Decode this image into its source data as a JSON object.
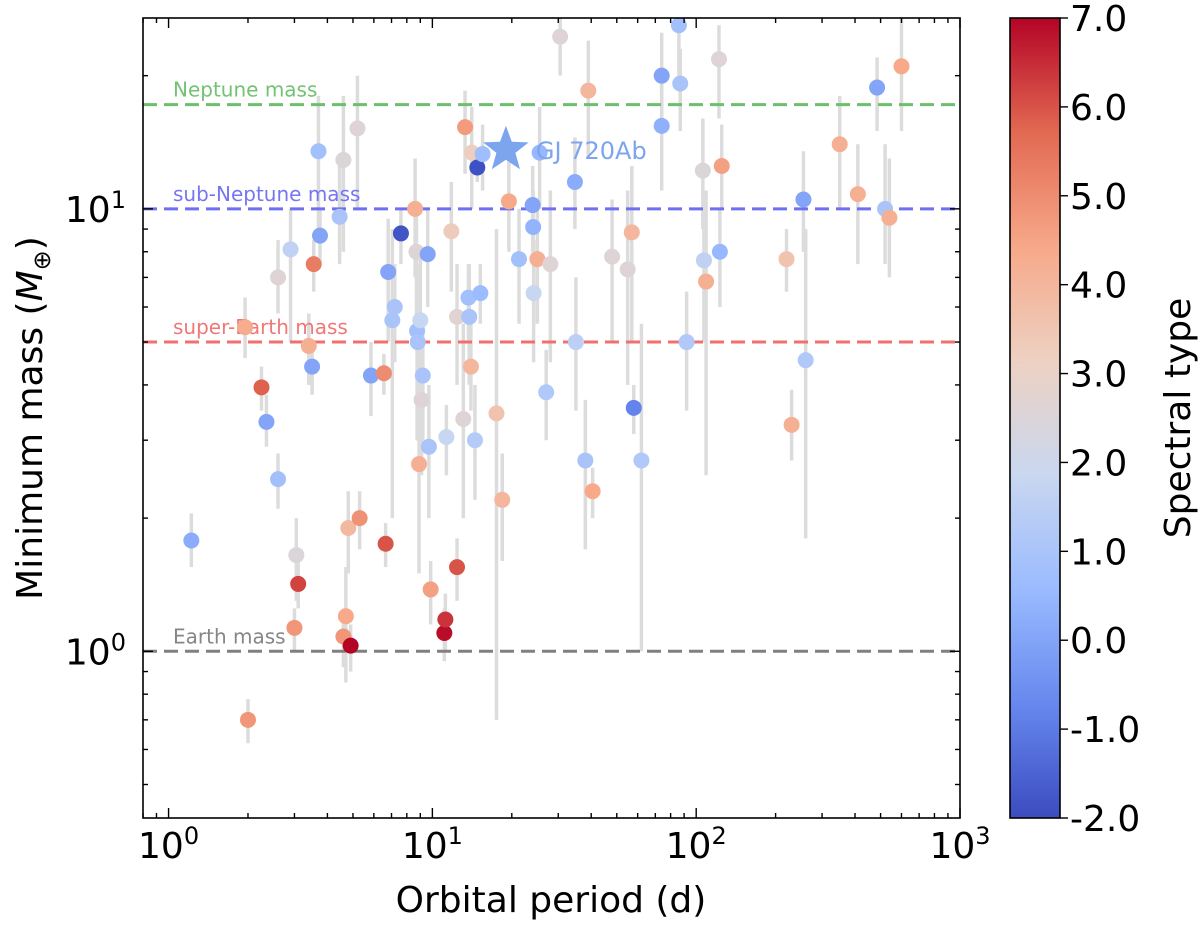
{
  "chart_data": {
    "type": "scatter",
    "title": "",
    "xlabel": "Orbital period (d)",
    "ylabel": "Minimum mass (",
    "ylabel_symbol": "M",
    "ylabel_subscript": "⊕",
    "ylabel_close": ")",
    "xscale": "log",
    "yscale": "log",
    "xlim": [
      0.8,
      1000
    ],
    "ylim": [
      0.42,
      27
    ],
    "xticks": [
      {
        "value": 1,
        "base": "10",
        "exp": "0"
      },
      {
        "value": 10,
        "base": "10",
        "exp": "1"
      },
      {
        "value": 100,
        "base": "10",
        "exp": "2"
      },
      {
        "value": 1000,
        "base": "10",
        "exp": "3"
      }
    ],
    "yticks": [
      {
        "value": 1,
        "base": "10",
        "exp": "0"
      },
      {
        "value": 10,
        "base": "10",
        "exp": "1"
      }
    ],
    "reference_lines": [
      {
        "name": "neptune",
        "label": "Neptune mass",
        "y": 17.2,
        "color": "#6cbf6c"
      },
      {
        "name": "sub-neptune",
        "label": "sub-Neptune mass",
        "y": 10,
        "color": "#6f6ff2"
      },
      {
        "name": "super-earth",
        "label": "super-Earth mass",
        "y": 5,
        "color": "#f07070"
      },
      {
        "name": "earth",
        "label": "Earth mass",
        "y": 1,
        "color": "#808080"
      }
    ],
    "highlight": {
      "label": "GJ 720Ab",
      "x": 19.0,
      "y": 13.6,
      "color": "#7da5ee"
    },
    "colorbar": {
      "label": "Spectral type",
      "min": -2.0,
      "max": 7.0,
      "ticks": [
        "-2.0",
        "-1.0",
        "0.0",
        "1.0",
        "2.0",
        "3.0",
        "4.0",
        "5.0",
        "6.0",
        "7.0"
      ],
      "colormap": [
        "#3b4cc0",
        "#6788ee",
        "#9abbff",
        "#c9d7f0",
        "#edd1c2",
        "#f7a889",
        "#e26952",
        "#b40426"
      ]
    },
    "points": [
      {
        "x": 1.22,
        "y": 1.78,
        "c": 0.2,
        "err": [
          1.55,
          2.05
        ]
      },
      {
        "x": 1.95,
        "y": 5.4,
        "c": 4.3,
        "err": [
          4.6,
          6.3
        ]
      },
      {
        "x": 2.0,
        "y": 0.7,
        "c": 4.8,
        "err": [
          0.62,
          0.78
        ]
      },
      {
        "x": 2.25,
        "y": 3.95,
        "c": 5.8,
        "err": [
          3.5,
          4.4
        ]
      },
      {
        "x": 2.35,
        "y": 3.3,
        "c": 0.0,
        "err": [
          2.9,
          3.8
        ]
      },
      {
        "x": 2.6,
        "y": 2.45,
        "c": 0.8,
        "err": [
          2.1,
          2.8
        ]
      },
      {
        "x": 2.6,
        "y": 7.0,
        "c": 2.6,
        "err": [
          5.8,
          8.5
        ]
      },
      {
        "x": 2.9,
        "y": 8.1,
        "c": 1.6,
        "err": [
          5.0,
          10.0
        ]
      },
      {
        "x": 3.0,
        "y": 1.13,
        "c": 4.8,
        "err": [
          1.0,
          1.25
        ]
      },
      {
        "x": 3.05,
        "y": 1.65,
        "c": 2.5,
        "err": [
          1.3,
          2.0
        ]
      },
      {
        "x": 3.1,
        "y": 1.42,
        "c": 6.2,
        "err": [
          1.25,
          1.6
        ]
      },
      {
        "x": 3.4,
        "y": 4.9,
        "c": 4.2,
        "err": [
          4.0,
          5.8
        ]
      },
      {
        "x": 3.5,
        "y": 4.4,
        "c": 0.0,
        "err": [
          3.8,
          5.0
        ]
      },
      {
        "x": 3.55,
        "y": 7.5,
        "c": 5.3,
        "err": [
          6.5,
          8.5
        ]
      },
      {
        "x": 3.7,
        "y": 13.5,
        "c": 0.8,
        "err": [
          9.0,
          18.0
        ]
      },
      {
        "x": 3.75,
        "y": 8.7,
        "c": 0.0,
        "err": [
          7.5,
          10.0
        ]
      },
      {
        "x": 4.45,
        "y": 9.6,
        "c": 1.0,
        "err": [
          7.5,
          12.5
        ]
      },
      {
        "x": 4.6,
        "y": 12.9,
        "c": 2.5,
        "err": [
          8.0,
          18.0
        ]
      },
      {
        "x": 4.6,
        "y": 1.08,
        "c": 4.8,
        "err": [
          0.92,
          1.25
        ]
      },
      {
        "x": 4.7,
        "y": 1.2,
        "c": 4.4,
        "err": [
          0.85,
          1.55
        ]
      },
      {
        "x": 4.8,
        "y": 1.9,
        "c": 3.9,
        "err": [
          1.5,
          2.3
        ]
      },
      {
        "x": 4.9,
        "y": 1.03,
        "c": 7.0,
        "err": [
          0.9,
          1.15
        ]
      },
      {
        "x": 5.2,
        "y": 15.2,
        "c": 2.6,
        "err": [
          10.0,
          20.0
        ]
      },
      {
        "x": 5.3,
        "y": 2.0,
        "c": 4.9,
        "err": [
          1.7,
          2.3
        ]
      },
      {
        "x": 5.85,
        "y": 4.2,
        "c": 0.0,
        "err": [
          3.4,
          5.0
        ]
      },
      {
        "x": 6.55,
        "y": 4.25,
        "c": 5.0,
        "err": [
          3.8,
          4.7
        ]
      },
      {
        "x": 6.65,
        "y": 1.75,
        "c": 6.0,
        "err": [
          1.55,
          1.95
        ]
      },
      {
        "x": 6.8,
        "y": 7.2,
        "c": 0.0,
        "err": [
          5.0,
          9.5
        ]
      },
      {
        "x": 7.05,
        "y": 5.6,
        "c": 1.0,
        "err": [
          2.0,
          9.0
        ]
      },
      {
        "x": 7.2,
        "y": 6.0,
        "c": 1.0,
        "err": [
          4.5,
          7.5
        ]
      },
      {
        "x": 7.6,
        "y": 8.8,
        "c": -1.8,
        "err": [
          7.5,
          10.0
        ]
      },
      {
        "x": 8.6,
        "y": 10.0,
        "c": 4.2,
        "err": [
          7.0,
          13.0
        ]
      },
      {
        "x": 8.7,
        "y": 8.0,
        "c": 2.6,
        "err": [
          5.0,
          10.0
        ]
      },
      {
        "x": 8.75,
        "y": 5.3,
        "c": 0.8,
        "err": [
          3.0,
          7.5
        ]
      },
      {
        "x": 8.8,
        "y": 5.0,
        "c": 1.0,
        "err": [
          3.0,
          7.0
        ]
      },
      {
        "x": 8.9,
        "y": 2.65,
        "c": 4.2,
        "err": [
          1.5,
          4.0
        ]
      },
      {
        "x": 9.0,
        "y": 5.6,
        "c": 1.8,
        "err": [
          3.5,
          8.0
        ]
      },
      {
        "x": 9.1,
        "y": 3.7,
        "c": 2.6,
        "err": [
          2.5,
          5.0
        ]
      },
      {
        "x": 9.2,
        "y": 4.2,
        "c": 1.0,
        "err": [
          3.0,
          5.5
        ]
      },
      {
        "x": 9.6,
        "y": 7.9,
        "c": 0.0,
        "err": [
          6.0,
          10.0
        ]
      },
      {
        "x": 9.7,
        "y": 2.9,
        "c": 1.0,
        "err": [
          2.0,
          4.0
        ]
      },
      {
        "x": 9.85,
        "y": 1.38,
        "c": 4.6,
        "err": [
          1.15,
          1.6
        ]
      },
      {
        "x": 11.1,
        "y": 1.1,
        "c": 6.9,
        "err": [
          0.95,
          1.25
        ]
      },
      {
        "x": 11.2,
        "y": 1.18,
        "c": 6.4,
        "err": [
          1.0,
          1.35
        ]
      },
      {
        "x": 11.3,
        "y": 3.05,
        "c": 1.8,
        "err": [
          2.5,
          3.6
        ]
      },
      {
        "x": 11.8,
        "y": 8.9,
        "c": 3.3,
        "err": [
          6.5,
          11.5
        ]
      },
      {
        "x": 12.4,
        "y": 1.55,
        "c": 6.0,
        "err": [
          1.3,
          1.8
        ]
      },
      {
        "x": 12.4,
        "y": 5.7,
        "c": 2.7,
        "err": [
          4.0,
          7.5
        ]
      },
      {
        "x": 13.1,
        "y": 3.35,
        "c": 2.6,
        "err": [
          2.0,
          5.5
        ]
      },
      {
        "x": 13.3,
        "y": 15.3,
        "c": 4.7,
        "err": [
          12.0,
          18.5
        ]
      },
      {
        "x": 13.7,
        "y": 6.3,
        "c": 0.8,
        "err": [
          5.0,
          7.5
        ]
      },
      {
        "x": 13.8,
        "y": 5.7,
        "c": 1.0,
        "err": [
          4.0,
          7.5
        ]
      },
      {
        "x": 14.0,
        "y": 4.4,
        "c": 4.0,
        "err": [
          3.5,
          5.5
        ]
      },
      {
        "x": 14.1,
        "y": 13.4,
        "c": 3.2,
        "err": [
          10.0,
          17.0
        ]
      },
      {
        "x": 14.5,
        "y": 3.0,
        "c": 1.3,
        "err": [
          2.2,
          4.0
        ]
      },
      {
        "x": 14.8,
        "y": 12.4,
        "c": -1.9,
        "err": [
          11.5,
          13.3
        ]
      },
      {
        "x": 15.2,
        "y": 6.45,
        "c": 0.6,
        "err": [
          5.5,
          7.5
        ]
      },
      {
        "x": 15.5,
        "y": 13.3,
        "c": 0.7,
        "err": [
          11.0,
          15.5
        ]
      },
      {
        "x": 17.5,
        "y": 3.45,
        "c": 3.6,
        "err": [
          0.7,
          9.0
        ]
      },
      {
        "x": 18.4,
        "y": 2.2,
        "c": 4.0,
        "err": [
          1.6,
          2.8
        ]
      },
      {
        "x": 19.5,
        "y": 10.4,
        "c": 4.4,
        "err": [
          8.0,
          13.0
        ]
      },
      {
        "x": 21.3,
        "y": 7.7,
        "c": 0.8,
        "err": [
          5.5,
          10.0
        ]
      },
      {
        "x": 24.0,
        "y": 10.2,
        "c": 0.0,
        "err": [
          8.0,
          12.5
        ]
      },
      {
        "x": 24.1,
        "y": 9.1,
        "c": 0.4,
        "err": [
          7.5,
          11.0
        ]
      },
      {
        "x": 24.2,
        "y": 6.45,
        "c": 1.8,
        "err": [
          4.5,
          8.5
        ]
      },
      {
        "x": 25.0,
        "y": 7.7,
        "c": 4.2,
        "err": [
          5.5,
          10.0
        ]
      },
      {
        "x": 25.5,
        "y": 13.4,
        "c": 0.5,
        "err": [
          10.0,
          17.0
        ]
      },
      {
        "x": 27.0,
        "y": 3.85,
        "c": 1.2,
        "err": [
          3.0,
          4.8
        ]
      },
      {
        "x": 28.0,
        "y": 7.5,
        "c": 2.6,
        "err": [
          4.5,
          11.0
        ]
      },
      {
        "x": 30.5,
        "y": 24.5,
        "c": 2.6,
        "err": [
          20.0,
          28.0
        ]
      },
      {
        "x": 34.7,
        "y": 11.5,
        "c": 0.2,
        "err": [
          9.0,
          14.5
        ]
      },
      {
        "x": 35.0,
        "y": 5.0,
        "c": 1.5,
        "err": [
          3.5,
          7.0
        ]
      },
      {
        "x": 38.0,
        "y": 2.7,
        "c": 1.0,
        "err": [
          1.7,
          3.7
        ]
      },
      {
        "x": 39.0,
        "y": 18.5,
        "c": 4.0,
        "err": [
          13.0,
          24.0
        ]
      },
      {
        "x": 40.5,
        "y": 2.3,
        "c": 4.4,
        "err": [
          2.0,
          2.6
        ]
      },
      {
        "x": 48.0,
        "y": 7.8,
        "c": 2.6,
        "err": [
          5.0,
          10.5
        ]
      },
      {
        "x": 55.0,
        "y": 7.3,
        "c": 2.6,
        "err": [
          4.0,
          11.0
        ]
      },
      {
        "x": 57.0,
        "y": 8.85,
        "c": 4.0,
        "err": [
          5.0,
          12.5
        ]
      },
      {
        "x": 58.0,
        "y": 3.55,
        "c": -0.8,
        "err": [
          3.1,
          4.0
        ]
      },
      {
        "x": 62.0,
        "y": 2.7,
        "c": 1.2,
        "err": [
          1.0,
          5.5
        ]
      },
      {
        "x": 74.0,
        "y": 20.0,
        "c": 0.0,
        "err": [
          15.0,
          25.0
        ]
      },
      {
        "x": 74.0,
        "y": 15.4,
        "c": 0.3,
        "err": [
          11.0,
          20.0
        ]
      },
      {
        "x": 86.0,
        "y": 26.0,
        "c": 0.8,
        "err": [
          20.0,
          30.0
        ]
      },
      {
        "x": 87.0,
        "y": 19.2,
        "c": 1.0,
        "err": [
          15.0,
          23.0
        ]
      },
      {
        "x": 92.0,
        "y": 5.0,
        "c": 1.2,
        "err": [
          3.5,
          6.5
        ]
      },
      {
        "x": 106.0,
        "y": 12.2,
        "c": 2.5,
        "err": [
          9.0,
          16.0
        ]
      },
      {
        "x": 107.0,
        "y": 7.65,
        "c": 1.6,
        "err": [
          5.0,
          10.0
        ]
      },
      {
        "x": 109.0,
        "y": 6.85,
        "c": 4.2,
        "err": [
          2.5,
          11.0
        ]
      },
      {
        "x": 122.0,
        "y": 21.8,
        "c": 2.6,
        "err": [
          16.0,
          26.0
        ]
      },
      {
        "x": 123.0,
        "y": 8.0,
        "c": 0.5,
        "err": [
          6.0,
          10.0
        ]
      },
      {
        "x": 125.0,
        "y": 12.5,
        "c": 4.6,
        "err": [
          10.0,
          15.5
        ]
      },
      {
        "x": 220.0,
        "y": 7.7,
        "c": 3.6,
        "err": [
          6.5,
          9.0
        ]
      },
      {
        "x": 230.0,
        "y": 3.25,
        "c": 4.2,
        "err": [
          2.7,
          3.9
        ]
      },
      {
        "x": 255.0,
        "y": 10.5,
        "c": 0.0,
        "err": [
          8.0,
          13.5
        ]
      },
      {
        "x": 260.0,
        "y": 4.55,
        "c": 1.2,
        "err": [
          1.8,
          9.0
        ]
      },
      {
        "x": 350.0,
        "y": 14.0,
        "c": 4.2,
        "err": [
          10.0,
          18.0
        ]
      },
      {
        "x": 410.0,
        "y": 10.8,
        "c": 4.2,
        "err": [
          7.5,
          14.0
        ]
      },
      {
        "x": 485.0,
        "y": 18.8,
        "c": 0.0,
        "err": [
          15.0,
          22.0
        ]
      },
      {
        "x": 520.0,
        "y": 10.0,
        "c": 1.0,
        "err": [
          7.5,
          14.0
        ]
      },
      {
        "x": 540.0,
        "y": 9.55,
        "c": 4.2,
        "err": [
          7.0,
          13.0
        ]
      },
      {
        "x": 600.0,
        "y": 21.0,
        "c": 4.4,
        "err": [
          15.0,
          27.0
        ]
      }
    ]
  }
}
